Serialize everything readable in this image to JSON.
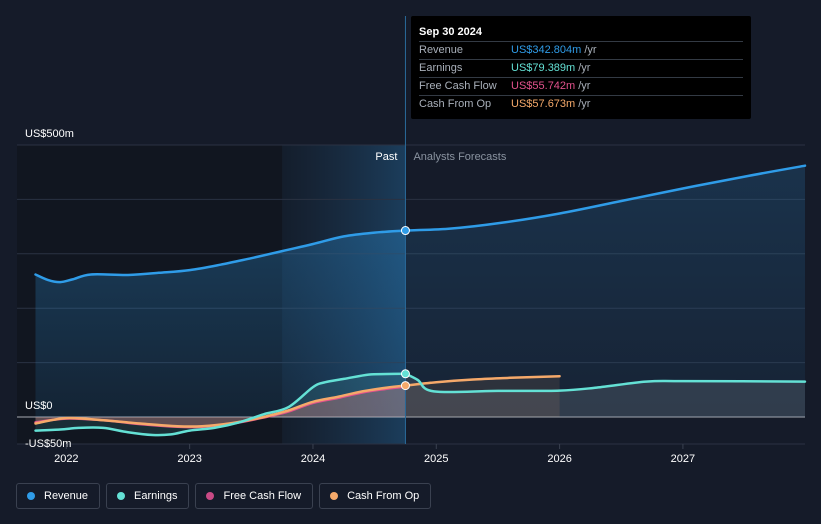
{
  "tooltip": {
    "date": "Sep 30 2024",
    "rows": [
      {
        "label": "Revenue",
        "value": "US$342.804m",
        "unit": "/yr",
        "color": "#2f9ce8"
      },
      {
        "label": "Earnings",
        "value": "US$79.389m",
        "unit": "/yr",
        "color": "#64e1d5"
      },
      {
        "label": "Free Cash Flow",
        "value": "US$55.742m",
        "unit": "/yr",
        "color": "#e2528c"
      },
      {
        "label": "Cash From Op",
        "value": "US$57.673m",
        "unit": "/yr",
        "color": "#f5a96a"
      }
    ]
  },
  "legend": [
    {
      "label": "Revenue",
      "color": "#2f9ce8"
    },
    {
      "label": "Earnings",
      "color": "#64e1d5"
    },
    {
      "label": "Free Cash Flow",
      "color": "#c94a85"
    },
    {
      "label": "Cash From Op",
      "color": "#f5a96a"
    }
  ],
  "chart_data": {
    "type": "line",
    "x_ticks": [
      2022,
      2023,
      2024,
      2025,
      2026,
      2027
    ],
    "xlim": [
      2021.6,
      2027.99
    ],
    "ylim": [
      -50,
      500
    ],
    "y_labels": [
      {
        "value": 500,
        "text": "US$500m"
      },
      {
        "value": 0,
        "text": "US$0"
      },
      {
        "value": -50,
        "text": "-US$50m"
      }
    ],
    "divider_x": 2024.75,
    "past_label": "Past",
    "forecast_label": "Analysts Forecasts",
    "highlight_start_x": 2023.75,
    "grid": true,
    "series": [
      {
        "name": "Revenue",
        "color": "#2f9ce8",
        "points": [
          [
            2021.75,
            262
          ],
          [
            2021.85,
            252
          ],
          [
            2021.95,
            248
          ],
          [
            2022.05,
            253
          ],
          [
            2022.2,
            262
          ],
          [
            2022.5,
            261
          ],
          [
            2022.75,
            265
          ],
          [
            2023.0,
            270
          ],
          [
            2023.25,
            280
          ],
          [
            2023.5,
            292
          ],
          [
            2023.75,
            305
          ],
          [
            2024.0,
            318
          ],
          [
            2024.25,
            332
          ],
          [
            2024.5,
            339
          ],
          [
            2024.75,
            342.8
          ]
        ],
        "forecast": [
          [
            2024.75,
            342.8
          ],
          [
            2025.1,
            346
          ],
          [
            2025.5,
            356
          ],
          [
            2026.0,
            374
          ],
          [
            2026.5,
            397
          ],
          [
            2027.0,
            420
          ],
          [
            2027.5,
            442
          ],
          [
            2027.99,
            462
          ]
        ]
      },
      {
        "name": "Earnings",
        "color": "#64e1d5",
        "points": [
          [
            2021.75,
            -25
          ],
          [
            2021.95,
            -23
          ],
          [
            2022.1,
            -20
          ],
          [
            2022.3,
            -20
          ],
          [
            2022.5,
            -28
          ],
          [
            2022.7,
            -33
          ],
          [
            2022.85,
            -32
          ],
          [
            2023.0,
            -25
          ],
          [
            2023.2,
            -20
          ],
          [
            2023.4,
            -10
          ],
          [
            2023.6,
            5
          ],
          [
            2023.8,
            18
          ],
          [
            2024.0,
            55
          ],
          [
            2024.1,
            64
          ],
          [
            2024.25,
            70
          ],
          [
            2024.45,
            78
          ],
          [
            2024.6,
            79
          ],
          [
            2024.75,
            79.4
          ]
        ],
        "forecast": [
          [
            2024.75,
            79.4
          ],
          [
            2024.85,
            68
          ],
          [
            2024.98,
            47
          ],
          [
            2025.5,
            48
          ],
          [
            2026.0,
            48.5
          ],
          [
            2026.3,
            54
          ],
          [
            2026.7,
            65
          ],
          [
            2027.0,
            66
          ],
          [
            2027.99,
            65
          ]
        ]
      },
      {
        "name": "Free Cash Flow",
        "color": "#e2528c",
        "points": [
          [
            2021.75,
            -10
          ],
          [
            2022.0,
            -3
          ],
          [
            2022.3,
            -6
          ],
          [
            2022.6,
            -13
          ],
          [
            2022.9,
            -18
          ],
          [
            2023.1,
            -18
          ],
          [
            2023.35,
            -12
          ],
          [
            2023.6,
            -1
          ],
          [
            2023.8,
            10
          ],
          [
            2024.0,
            26
          ],
          [
            2024.2,
            35
          ],
          [
            2024.4,
            45
          ],
          [
            2024.6,
            52
          ],
          [
            2024.75,
            55.7
          ]
        ],
        "forecast": []
      },
      {
        "name": "Cash From Op",
        "color": "#f5a96a",
        "points": [
          [
            2021.75,
            -12
          ],
          [
            2022.0,
            -2
          ],
          [
            2022.3,
            -6
          ],
          [
            2022.6,
            -12
          ],
          [
            2022.9,
            -17
          ],
          [
            2023.1,
            -17
          ],
          [
            2023.35,
            -11
          ],
          [
            2023.6,
            0
          ],
          [
            2023.8,
            12
          ],
          [
            2024.0,
            28
          ],
          [
            2024.2,
            37
          ],
          [
            2024.4,
            47
          ],
          [
            2024.6,
            54
          ],
          [
            2024.75,
            57.7
          ]
        ],
        "forecast": [
          [
            2024.75,
            57.7
          ],
          [
            2025.0,
            64
          ],
          [
            2025.3,
            69
          ],
          [
            2025.6,
            72
          ],
          [
            2026.0,
            75
          ]
        ]
      }
    ],
    "markers": [
      {
        "series": "Revenue",
        "x": 2024.75,
        "y": 342.8
      },
      {
        "series": "Earnings",
        "x": 2024.75,
        "y": 79.4
      },
      {
        "series": "Cash From Op",
        "x": 2024.75,
        "y": 57.7
      }
    ]
  }
}
